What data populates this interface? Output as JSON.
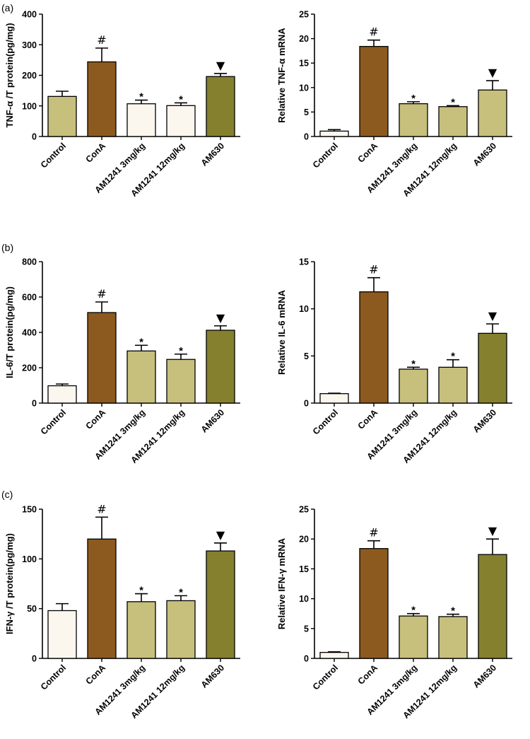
{
  "panel_labels": [
    "(a)",
    "(b)",
    "(c)"
  ],
  "categories": [
    "Control",
    "ConA",
    "AM1241 3mg/kg",
    "AM1241 12mg/kg",
    "AM630"
  ],
  "colors": {
    "white": "#fbf6ee",
    "brown": "#8c5a1e",
    "khaki": "#c7bf7c",
    "olive": "#85802e"
  },
  "chart_data": [
    {
      "type": "bar",
      "panel": "(a)",
      "ylabel": "TNF-α /T protein(pg/mg)",
      "ylim": [
        0,
        400
      ],
      "yticks": [
        0,
        100,
        200,
        300,
        400
      ],
      "categories": [
        "Control",
        "ConA",
        "AM1241 3mg/kg",
        "AM1241 12mg/kg",
        "AM630"
      ],
      "values": [
        131,
        244,
        107,
        101,
        196
      ],
      "errors": [
        17,
        45,
        12,
        9,
        10
      ],
      "fills": [
        "khaki",
        "brown",
        "white",
        "white",
        "olive"
      ],
      "annotations": [
        "",
        "#",
        "*",
        "*",
        "▼"
      ]
    },
    {
      "type": "bar",
      "panel": "(a)",
      "ylabel": "Relative TNF-α mRNA",
      "ylim": [
        0,
        25
      ],
      "yticks": [
        0,
        5,
        10,
        15,
        20,
        25
      ],
      "categories": [
        "Control",
        "ConA",
        "AM1241 3mg/kg",
        "AM1241 12mg/kg",
        "AM630"
      ],
      "values": [
        1.1,
        18.4,
        6.7,
        6.1,
        9.5
      ],
      "errors": [
        0.3,
        1.3,
        0.4,
        0.2,
        1.9
      ],
      "fills": [
        "white",
        "brown",
        "khaki",
        "khaki",
        "khaki"
      ],
      "annotations": [
        "",
        "#",
        "*",
        "*",
        "▼"
      ]
    },
    {
      "type": "bar",
      "panel": "(b)",
      "ylabel": "IL-6/T protein(pg/mg)",
      "ylim": [
        0,
        800
      ],
      "yticks": [
        0,
        200,
        400,
        600,
        800
      ],
      "categories": [
        "Control",
        "ConA",
        "AM1241 3mg/kg",
        "AM1241 12mg/kg",
        "AM630"
      ],
      "values": [
        98,
        512,
        295,
        247,
        412
      ],
      "errors": [
        10,
        60,
        32,
        30,
        25
      ],
      "fills": [
        "white",
        "brown",
        "khaki",
        "khaki",
        "olive"
      ],
      "annotations": [
        "",
        "#",
        "*",
        "*",
        "▼"
      ]
    },
    {
      "type": "bar",
      "panel": "(b)",
      "ylabel": "Relative IL-6 mRNA",
      "ylim": [
        0,
        15
      ],
      "yticks": [
        0,
        5,
        10,
        15
      ],
      "categories": [
        "Control",
        "ConA",
        "AM1241 3mg/kg",
        "AM1241 12mg/kg",
        "AM630"
      ],
      "values": [
        1.0,
        11.8,
        3.6,
        3.8,
        7.4
      ],
      "errors": [
        0.05,
        1.5,
        0.2,
        0.8,
        1.0
      ],
      "fills": [
        "white",
        "brown",
        "khaki",
        "khaki",
        "olive"
      ],
      "annotations": [
        "",
        "#",
        "*",
        "*",
        "▼"
      ]
    },
    {
      "type": "bar",
      "panel": "(c)",
      "ylabel": "IFN-γ /T protein(pg/mg)",
      "ylim": [
        0,
        150
      ],
      "yticks": [
        0,
        50,
        100,
        150
      ],
      "categories": [
        "Control",
        "ConA",
        "AM1241 3mg/kg",
        "AM1241 12mg/kg",
        "AM630"
      ],
      "values": [
        48,
        120,
        57,
        58,
        108
      ],
      "errors": [
        7,
        22,
        8,
        5,
        8
      ],
      "fills": [
        "white",
        "brown",
        "khaki",
        "khaki",
        "olive"
      ],
      "annotations": [
        "",
        "#",
        "*",
        "*",
        "▼"
      ]
    },
    {
      "type": "bar",
      "panel": "(c)",
      "ylabel": "Relative IFN-γ mRNA",
      "ylim": [
        0,
        25
      ],
      "yticks": [
        0,
        5,
        10,
        15,
        20,
        25
      ],
      "categories": [
        "Control",
        "ConA",
        "AM1241 3mg/kg",
        "AM1241 12mg/kg",
        "AM630"
      ],
      "values": [
        1.0,
        18.4,
        7.1,
        7.0,
        17.4
      ],
      "errors": [
        0.1,
        1.3,
        0.4,
        0.4,
        2.6
      ],
      "fills": [
        "white",
        "brown",
        "khaki",
        "khaki",
        "olive"
      ],
      "annotations": [
        "",
        "#",
        "*",
        "*",
        "▼"
      ]
    }
  ]
}
